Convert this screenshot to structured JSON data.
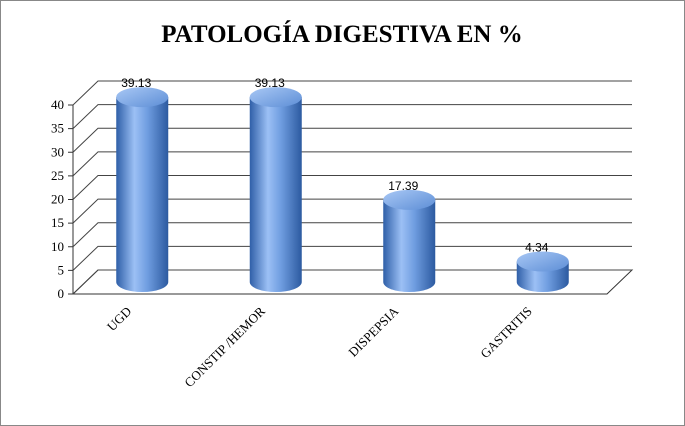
{
  "chart_data": {
    "type": "bar3d",
    "title": "PATOLOGÍA DIGESTIVA EN %",
    "categories": [
      "UGD",
      "CONSTIP /HEMOR",
      "DISPEPSIA",
      "GASTRITIS"
    ],
    "values": [
      39.13,
      39.13,
      17.39,
      4.34
    ],
    "color": "#4f81bd",
    "ylim": [
      0,
      40
    ],
    "yticks": [
      0,
      5,
      10,
      15,
      20,
      25,
      30,
      35,
      40
    ],
    "grid": true
  }
}
